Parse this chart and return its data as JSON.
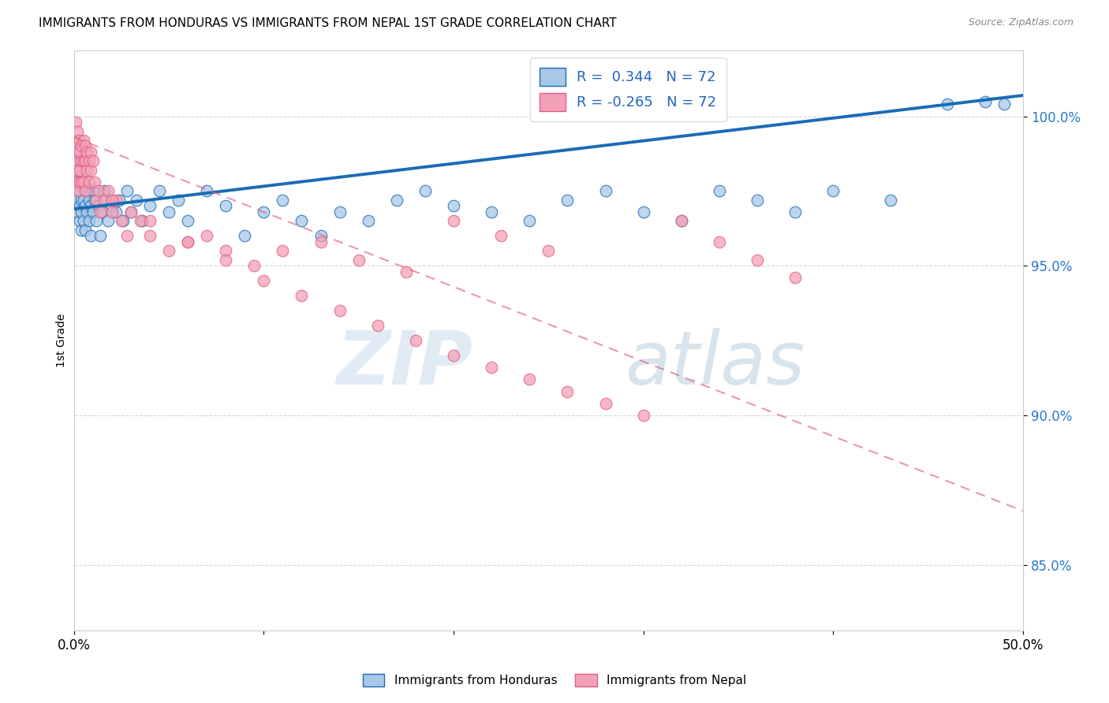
{
  "title": "IMMIGRANTS FROM HONDURAS VS IMMIGRANTS FROM NEPAL 1ST GRADE CORRELATION CHART",
  "source": "Source: ZipAtlas.com",
  "ylabel": "1st Grade",
  "xmin": 0.0,
  "xmax": 0.5,
  "ymin": 0.828,
  "ymax": 1.022,
  "yticks": [
    0.85,
    0.9,
    0.95,
    1.0
  ],
  "ytick_labels": [
    "85.0%",
    "90.0%",
    "95.0%",
    "100.0%"
  ],
  "xticks": [
    0.0,
    0.1,
    0.2,
    0.3,
    0.4,
    0.5
  ],
  "xtick_labels": [
    "0.0%",
    "",
    "",
    "",
    "",
    "50.0%"
  ],
  "r_honduras": 0.344,
  "n_honduras": 72,
  "r_nepal": -0.265,
  "n_nepal": 72,
  "color_honduras": "#a8c8e8",
  "color_nepal": "#f4a0b8",
  "color_line_honduras": "#1a6bb5",
  "color_line_nepal": "#e06080",
  "legend_label_honduras": "Immigrants from Honduras",
  "legend_label_nepal": "Immigrants from Nepal",
  "watermark_zip": "ZIP",
  "watermark_atlas": "atlas",
  "honduras_line_x0": 0.0,
  "honduras_line_y0": 0.969,
  "honduras_line_x1": 0.5,
  "honduras_line_y1": 1.007,
  "nepal_line_x0": 0.0,
  "nepal_line_y0": 0.993,
  "nepal_line_x1": 0.5,
  "nepal_line_y1": 0.868,
  "honduras_x": [
    0.001,
    0.001,
    0.001,
    0.002,
    0.002,
    0.002,
    0.003,
    0.003,
    0.003,
    0.004,
    0.004,
    0.004,
    0.005,
    0.005,
    0.005,
    0.006,
    0.006,
    0.007,
    0.007,
    0.008,
    0.008,
    0.009,
    0.009,
    0.01,
    0.01,
    0.011,
    0.012,
    0.013,
    0.014,
    0.015,
    0.016,
    0.017,
    0.018,
    0.02,
    0.022,
    0.024,
    0.026,
    0.028,
    0.03,
    0.033,
    0.036,
    0.04,
    0.045,
    0.05,
    0.055,
    0.06,
    0.07,
    0.08,
    0.09,
    0.1,
    0.11,
    0.12,
    0.13,
    0.14,
    0.155,
    0.17,
    0.185,
    0.2,
    0.22,
    0.24,
    0.26,
    0.28,
    0.3,
    0.32,
    0.34,
    0.36,
    0.38,
    0.4,
    0.43,
    0.46,
    0.48,
    0.49
  ],
  "honduras_y": [
    0.98,
    0.975,
    0.985,
    0.972,
    0.968,
    0.978,
    0.97,
    0.975,
    0.965,
    0.972,
    0.968,
    0.962,
    0.978,
    0.972,
    0.965,
    0.97,
    0.962,
    0.975,
    0.968,
    0.972,
    0.965,
    0.97,
    0.96,
    0.975,
    0.968,
    0.972,
    0.965,
    0.97,
    0.96,
    0.968,
    0.975,
    0.972,
    0.965,
    0.97,
    0.968,
    0.972,
    0.965,
    0.975,
    0.968,
    0.972,
    0.965,
    0.97,
    0.975,
    0.968,
    0.972,
    0.965,
    0.975,
    0.97,
    0.96,
    0.968,
    0.972,
    0.965,
    0.96,
    0.968,
    0.965,
    0.972,
    0.975,
    0.97,
    0.968,
    0.965,
    0.972,
    0.975,
    0.968,
    0.965,
    0.975,
    0.972,
    0.968,
    0.975,
    0.972,
    1.004,
    1.005,
    1.004
  ],
  "nepal_x": [
    0.001,
    0.001,
    0.001,
    0.001,
    0.002,
    0.002,
    0.002,
    0.002,
    0.003,
    0.003,
    0.003,
    0.003,
    0.004,
    0.004,
    0.004,
    0.005,
    0.005,
    0.005,
    0.006,
    0.006,
    0.006,
    0.007,
    0.007,
    0.008,
    0.008,
    0.009,
    0.009,
    0.01,
    0.011,
    0.012,
    0.013,
    0.014,
    0.016,
    0.018,
    0.02,
    0.022,
    0.025,
    0.028,
    0.03,
    0.035,
    0.04,
    0.05,
    0.06,
    0.07,
    0.08,
    0.095,
    0.11,
    0.13,
    0.15,
    0.175,
    0.2,
    0.225,
    0.25,
    0.02,
    0.04,
    0.06,
    0.08,
    0.1,
    0.12,
    0.14,
    0.16,
    0.18,
    0.2,
    0.22,
    0.24,
    0.26,
    0.28,
    0.3,
    0.32,
    0.34,
    0.36,
    0.38
  ],
  "nepal_y": [
    0.998,
    0.992,
    0.985,
    0.978,
    0.995,
    0.988,
    0.982,
    0.975,
    0.992,
    0.988,
    0.982,
    0.978,
    0.99,
    0.985,
    0.978,
    0.992,
    0.985,
    0.978,
    0.99,
    0.985,
    0.975,
    0.988,
    0.982,
    0.985,
    0.978,
    0.988,
    0.982,
    0.985,
    0.978,
    0.972,
    0.975,
    0.968,
    0.972,
    0.975,
    0.968,
    0.972,
    0.965,
    0.96,
    0.968,
    0.965,
    0.96,
    0.955,
    0.958,
    0.96,
    0.955,
    0.95,
    0.955,
    0.958,
    0.952,
    0.948,
    0.965,
    0.96,
    0.955,
    0.972,
    0.965,
    0.958,
    0.952,
    0.945,
    0.94,
    0.935,
    0.93,
    0.925,
    0.92,
    0.916,
    0.912,
    0.908,
    0.904,
    0.9,
    0.965,
    0.958,
    0.952,
    0.946
  ]
}
